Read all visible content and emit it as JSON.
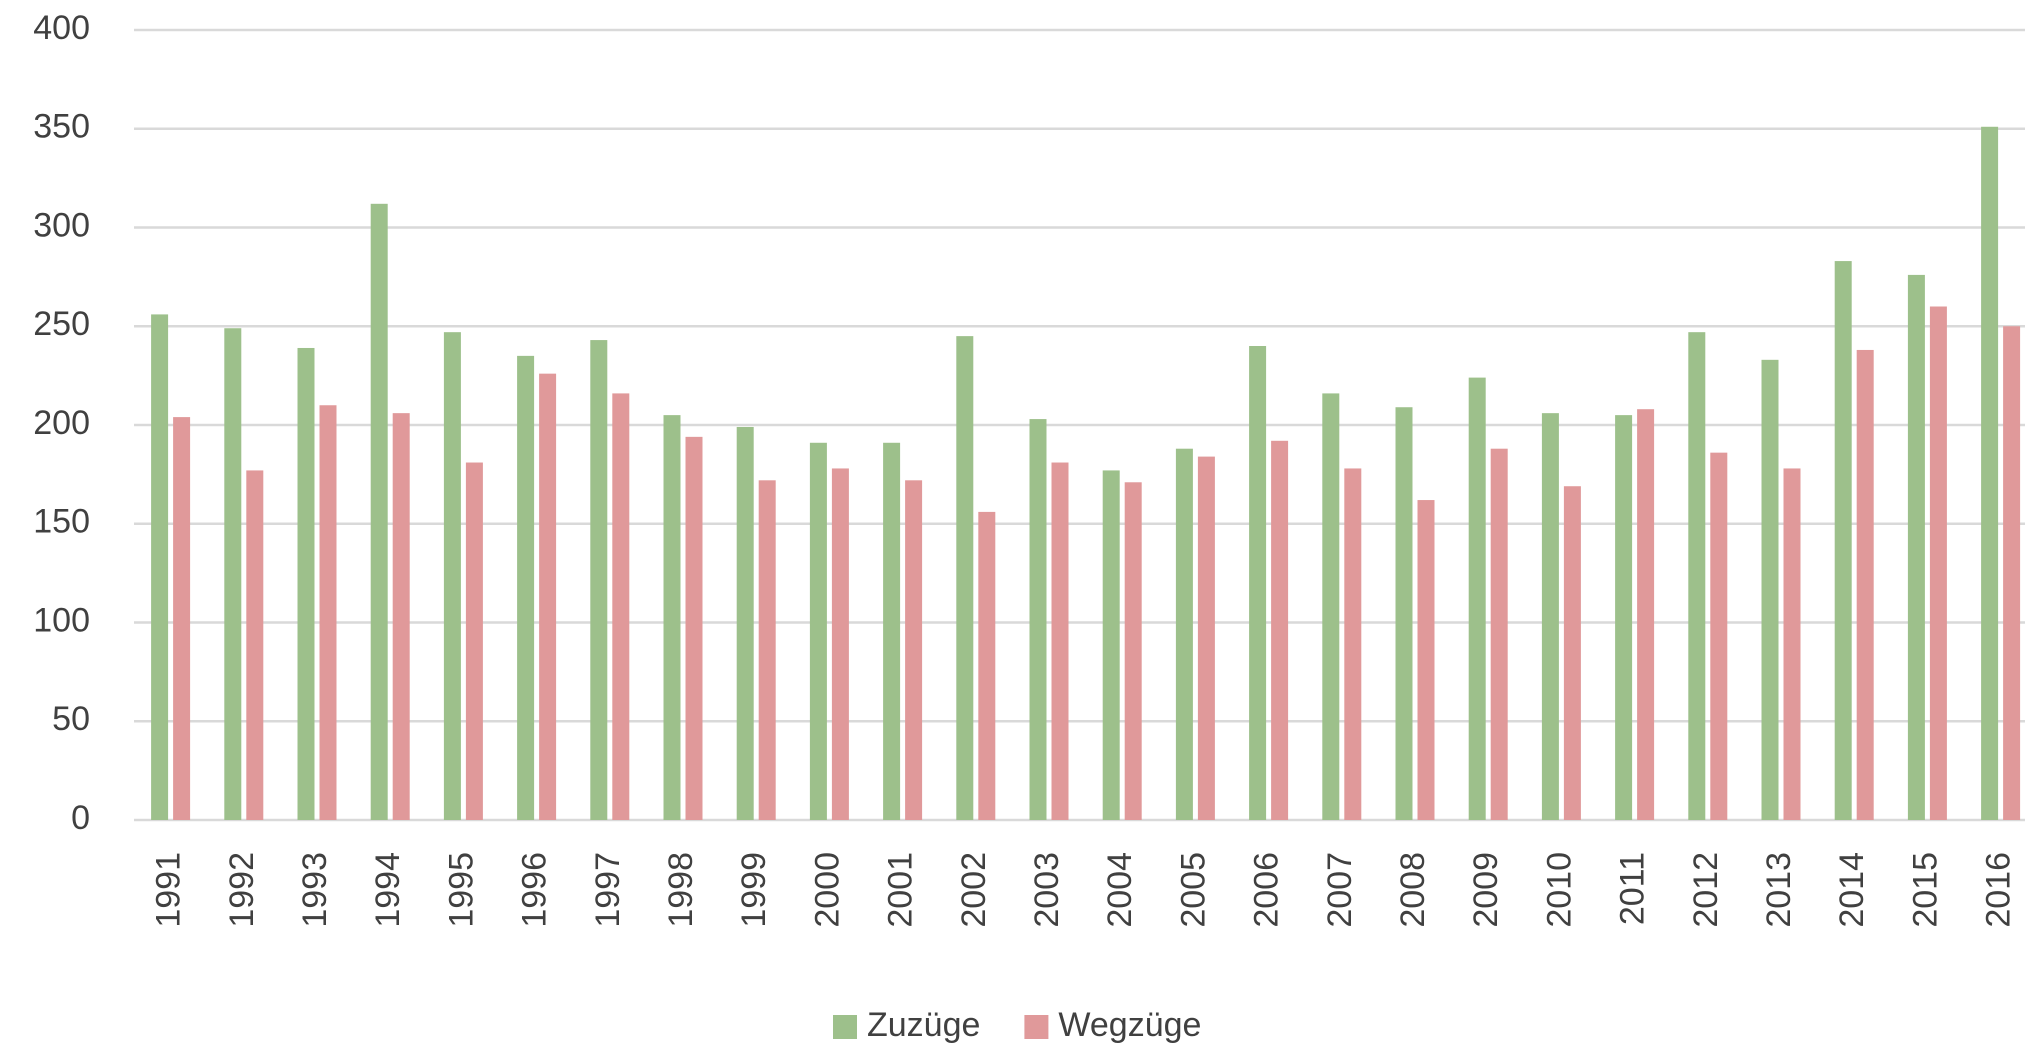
{
  "chart_data": {
    "type": "bar",
    "categories": [
      "1991",
      "1992",
      "1993",
      "1994",
      "1995",
      "1996",
      "1997",
      "1998",
      "1999",
      "2000",
      "2001",
      "2002",
      "2003",
      "2004",
      "2005",
      "2006",
      "2007",
      "2008",
      "2009",
      "2010",
      "2011",
      "2012",
      "2013",
      "2014",
      "2015",
      "2016"
    ],
    "series": [
      {
        "name": "Zuzüge",
        "color": "#9dc08b",
        "values": [
          256,
          249,
          239,
          312,
          247,
          235,
          243,
          205,
          199,
          191,
          191,
          245,
          203,
          177,
          188,
          240,
          216,
          209,
          224,
          206,
          205,
          247,
          233,
          283,
          276,
          351
        ]
      },
      {
        "name": "Wegzüge",
        "color": "#e0999a",
        "values": [
          204,
          177,
          210,
          206,
          181,
          226,
          216,
          194,
          172,
          178,
          172,
          156,
          181,
          171,
          184,
          192,
          178,
          162,
          188,
          169,
          208,
          186,
          178,
          238,
          260,
          250
        ]
      }
    ],
    "ylim": [
      0,
      400
    ],
    "yticks": [
      0,
      50,
      100,
      150,
      200,
      250,
      300,
      350,
      400
    ],
    "grid": true,
    "legend": "bottom"
  }
}
